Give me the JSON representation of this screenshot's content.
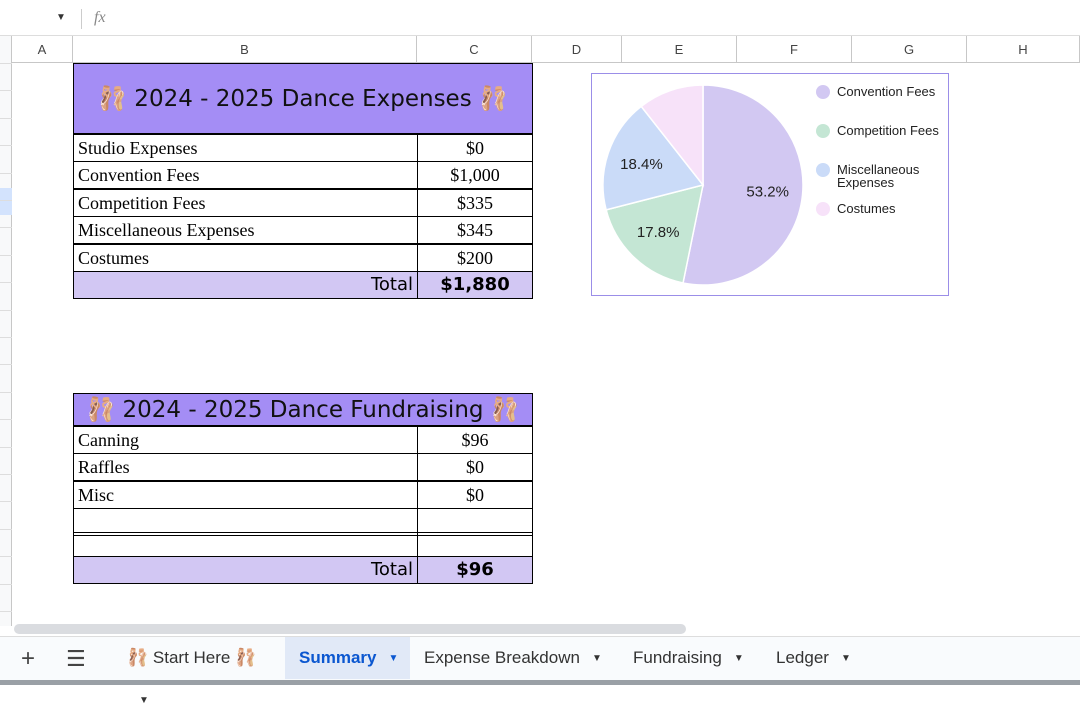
{
  "formula_bar": {
    "fx": "fx"
  },
  "columns": [
    "A",
    "B",
    "C",
    "D",
    "E",
    "F",
    "G",
    "H"
  ],
  "expenses": {
    "title": "🩰 2024 - 2025 Dance Expenses 🩰",
    "rows": [
      [
        "Studio Expenses",
        "$0"
      ],
      [
        "Convention Fees",
        "$1,000"
      ],
      [
        "Competition Fees",
        "$335"
      ],
      [
        "Miscellaneous Expenses",
        "$345"
      ],
      [
        "Costumes",
        "$200"
      ]
    ],
    "total_label": "Total",
    "total": "$1,880"
  },
  "fundraising": {
    "title": "🩰 2024 - 2025 Dance Fundraising 🩰",
    "rows": [
      [
        "Canning",
        "$96"
      ],
      [
        "Raffles",
        "$0"
      ],
      [
        "Misc",
        "$0"
      ]
    ],
    "total_label": "Total",
    "total": "$96"
  },
  "chart_data": {
    "type": "pie",
    "categories": [
      "Convention Fees",
      "Competition Fees",
      "Miscellaneous Expenses",
      "Costumes"
    ],
    "values": [
      53.2,
      17.8,
      18.4,
      10.6
    ],
    "value_labels": [
      "53.2%",
      "17.8%",
      "18.4%",
      null
    ],
    "colors": [
      "#d2c8f2",
      "#c4e6d4",
      "#cadbf8",
      "#f7e2f9"
    ],
    "legend": "right"
  },
  "tabs": [
    "🩰 Start Here 🩰",
    "Summary",
    "Expense Breakdown",
    "Fundraising",
    "Ledger"
  ],
  "active_tab": 1
}
